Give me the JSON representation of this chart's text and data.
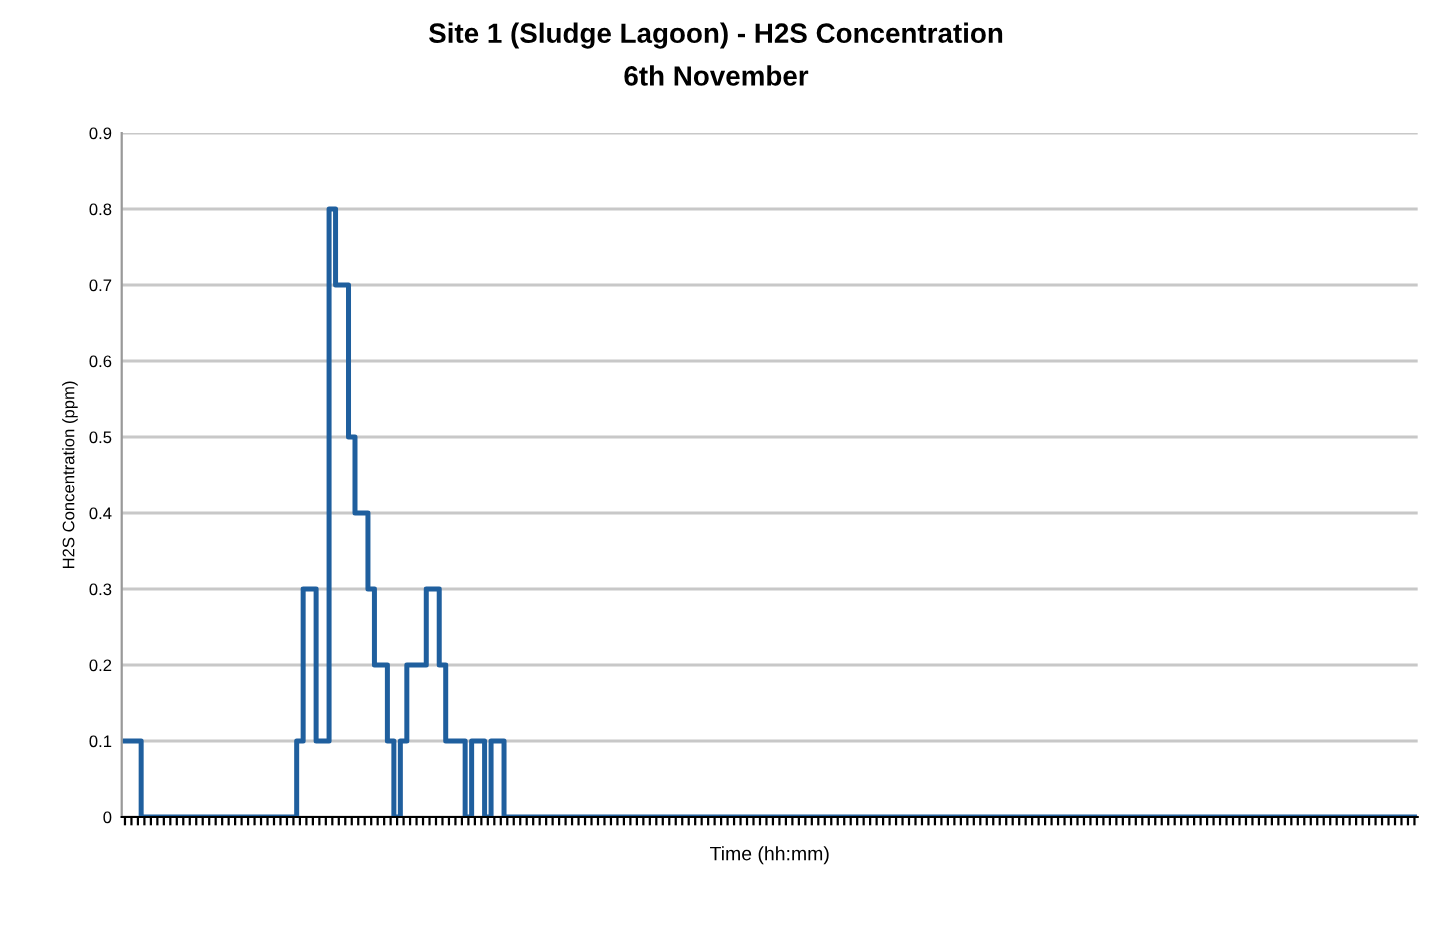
{
  "chart_data": {
    "type": "step",
    "title": "Site 1 (Sludge Lagoon) - H2S Concentration",
    "subtitle": "6th November",
    "xlabel": "Time (hh:mm)",
    "ylabel": "H2S Concentration (ppm)",
    "categories": [
      null,
      null,
      null,
      null,
      null,
      null,
      null,
      null,
      null,
      null,
      null,
      null,
      null,
      null,
      null,
      null,
      null,
      null,
      null,
      null,
      null,
      null,
      null,
      null,
      null,
      null,
      null,
      null,
      null,
      null,
      null,
      null,
      null,
      null,
      null,
      null,
      null,
      null,
      null,
      null,
      null,
      null,
      null,
      null,
      null,
      null,
      null,
      null,
      null,
      null,
      null,
      null,
      null,
      null,
      null,
      null,
      null,
      null,
      null,
      null,
      null,
      null,
      null,
      null,
      null,
      null,
      null,
      null,
      null,
      null,
      null,
      null,
      null,
      null,
      null,
      null,
      null,
      null,
      null,
      null,
      null,
      null,
      null,
      null,
      null,
      null,
      null,
      null,
      null,
      null,
      null,
      null,
      null,
      null,
      null,
      null,
      null,
      null,
      null,
      null,
      null,
      null,
      null,
      null,
      null,
      null,
      null,
      null,
      null,
      null,
      null,
      null,
      null,
      null,
      null,
      null,
      null,
      null,
      null,
      null,
      null,
      null,
      null,
      null,
      null,
      null,
      null,
      null,
      null,
      null,
      null,
      null,
      null,
      null,
      null,
      null,
      null,
      null,
      null,
      null,
      null,
      null,
      null,
      null,
      null,
      null,
      null,
      null,
      null,
      null,
      null,
      null,
      null,
      null,
      null,
      null,
      null,
      null,
      null,
      null,
      null,
      null,
      null,
      null,
      null,
      null,
      null,
      null,
      null,
      null,
      null,
      null,
      null,
      null,
      null,
      null,
      null,
      null,
      null,
      null,
      null,
      null,
      null,
      null,
      null,
      null,
      null,
      null,
      null,
      null,
      null,
      null,
      null,
      null,
      null,
      null,
      null,
      null,
      null,
      null
    ],
    "series": [
      {
        "color": "#1f5f9e",
        "values": [
          0.1,
          0.1,
          0.1,
          0,
          0,
          0,
          0,
          0,
          0,
          0,
          0,
          0,
          0,
          0,
          0,
          0,
          0,
          0,
          0,
          0,
          0,
          0,
          0,
          0,
          0,
          0,
          0,
          0.1,
          0.3,
          0.3,
          0.1,
          0.1,
          0.8,
          0.7,
          0.7,
          0.5,
          0.4,
          0.4,
          0.3,
          0.2,
          0.2,
          0.1,
          0,
          0.1,
          0.2,
          0.2,
          0.2,
          0.3,
          0.3,
          0.2,
          0.1,
          0.1,
          0.1,
          0,
          0.1,
          0.1,
          0,
          0.1,
          0.1,
          0,
          0,
          0,
          0,
          0,
          0,
          0,
          0,
          0,
          0,
          0,
          0,
          0,
          0,
          0,
          0,
          0,
          0,
          0,
          0,
          0,
          0,
          0,
          0,
          0,
          0,
          0,
          0,
          0,
          0,
          0,
          0,
          0,
          0,
          0,
          0,
          0,
          0,
          0,
          0,
          0,
          0,
          0,
          0,
          0,
          0,
          0,
          0,
          0,
          0,
          0,
          0,
          0,
          0,
          0,
          0,
          0,
          0,
          0,
          0,
          0,
          0,
          0,
          0,
          0,
          0,
          0,
          0,
          0,
          0,
          0,
          0,
          0,
          0,
          0,
          0,
          0,
          0,
          0,
          0,
          0,
          0,
          0,
          0,
          0,
          0,
          0,
          0,
          0,
          0,
          0,
          0,
          0,
          0,
          0,
          0,
          0,
          0,
          0,
          0,
          0,
          0,
          0,
          0,
          0,
          0,
          0,
          0,
          0,
          0,
          0,
          0,
          0,
          0,
          0,
          0,
          0,
          0,
          0,
          0,
          0,
          0,
          0,
          0,
          0,
          0,
          0,
          0,
          0,
          0,
          0,
          0,
          0,
          0,
          0,
          0,
          0,
          0,
          0,
          0,
          0
        ]
      }
    ],
    "ylim": [
      0,
      0.9
    ],
    "yticks": [
      0,
      0.1,
      0.2,
      0.3,
      0.4,
      0.5,
      0.6,
      0.7,
      0.8,
      0.9
    ],
    "grid": "y",
    "marker": "none",
    "line_style": "solid"
  }
}
